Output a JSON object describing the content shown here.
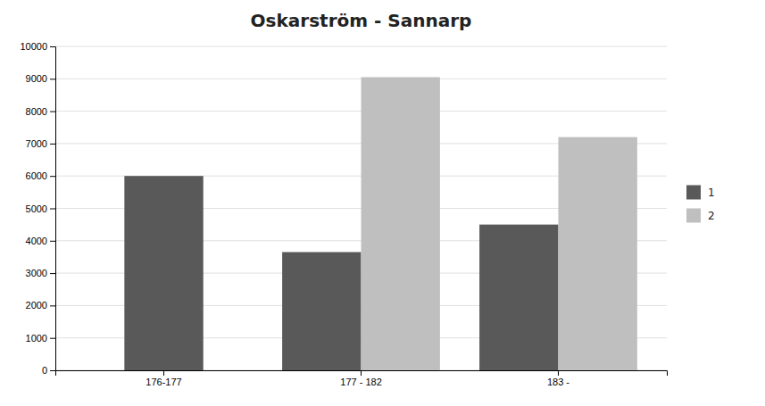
{
  "chart_data": {
    "type": "bar",
    "title": "Oskarström - Sannarp",
    "categories": [
      "176-177",
      "177 - 182",
      "183 -"
    ],
    "series": [
      {
        "name": "1",
        "color": "#595959",
        "values": [
          6000,
          3650,
          4500
        ]
      },
      {
        "name": "2",
        "color": "#bfbfbf",
        "values": [
          null,
          9050,
          7200
        ]
      }
    ],
    "ylim": [
      0,
      10000
    ],
    "yticks": [
      0,
      1000,
      2000,
      3000,
      4000,
      5000,
      6000,
      7000,
      8000,
      9000,
      10000
    ],
    "grid": true,
    "legend": "right"
  }
}
